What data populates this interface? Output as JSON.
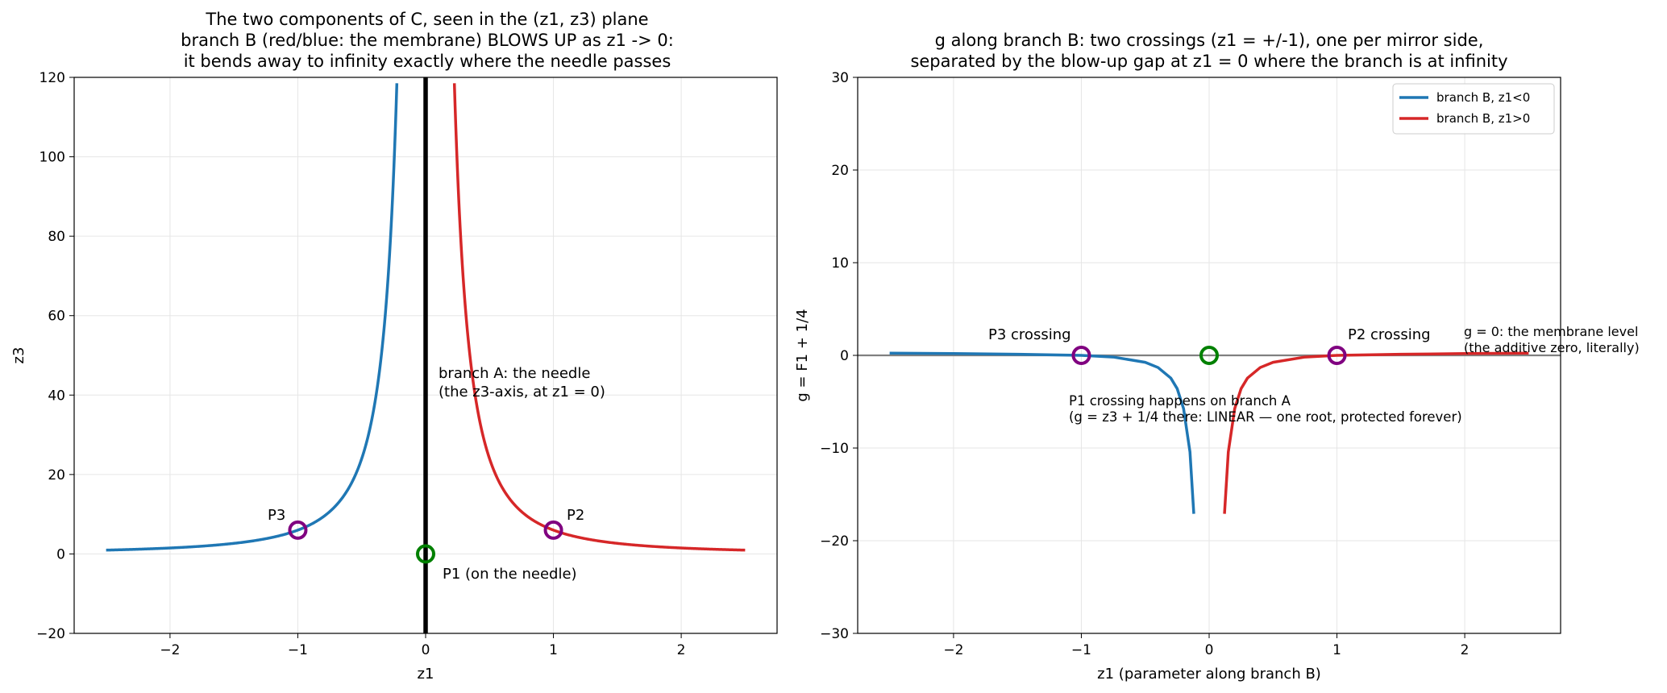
{
  "chart_data": [
    {
      "type": "line",
      "title": [
        "The two components of C, seen in the (z1, z3) plane",
        "branch B (red/blue: the membrane) BLOWS UP as z1 -> 0:",
        "it bends away to infinity exactly where the needle passes"
      ],
      "xlabel": "z1",
      "ylabel": "z3",
      "xlim": [
        -2.75,
        2.75
      ],
      "ylim": [
        -20,
        120
      ],
      "xticks": [
        -2,
        -1,
        0,
        1,
        2
      ],
      "yticks": [
        -20,
        0,
        20,
        40,
        60,
        80,
        100,
        120
      ],
      "grid": true,
      "series": [
        {
          "key": "neg",
          "color": "#1f77b4",
          "formula": "z3 = 6/z1^2",
          "x": [
            -2.5,
            -2.0,
            -1.5,
            -1.0,
            -0.75,
            -0.5,
            -0.4,
            -0.3,
            -0.25,
            -0.225
          ],
          "y": [
            0.96,
            1.5,
            2.67,
            6.0,
            10.67,
            24.0,
            37.5,
            66.7,
            96.0,
            118.5
          ]
        },
        {
          "key": "pos",
          "color": "#d62728",
          "formula": "z3 = 6/z1^2",
          "x": [
            0.225,
            0.25,
            0.3,
            0.4,
            0.5,
            0.75,
            1.0,
            1.5,
            2.0,
            2.5
          ],
          "y": [
            118.5,
            96.0,
            66.7,
            37.5,
            24.0,
            10.67,
            6.0,
            2.67,
            1.5,
            0.96
          ]
        },
        {
          "key": "needle",
          "color": "#000000",
          "x": [
            0,
            0
          ],
          "y": [
            -20,
            120
          ]
        }
      ],
      "markers": [
        {
          "label": "P3",
          "x": -1,
          "y": 6,
          "color": "#800080"
        },
        {
          "label": "P2",
          "x": 1,
          "y": 6,
          "color": "#800080"
        },
        {
          "label": "P1 (on the needle)",
          "x": 0,
          "y": 0,
          "color": "#008000"
        }
      ],
      "annotations": [
        {
          "lines": [
            "branch A: the needle",
            "(the z3-axis, at z1 = 0)"
          ],
          "x": 0.1,
          "y": 44,
          "color": "#000000"
        }
      ]
    },
    {
      "type": "line",
      "title": [
        "g along branch B: two crossings (z1 = +/-1), one per mirror side,",
        "separated by the blow-up gap at z1 = 0 where the branch is at infinity"
      ],
      "xlabel": "z1 (parameter along branch B)",
      "ylabel": "g = F1 + 1/4",
      "xlim": [
        -2.75,
        2.75
      ],
      "ylim": [
        -30,
        30
      ],
      "xticks": [
        -2,
        -1,
        0,
        1,
        2
      ],
      "yticks": [
        -30,
        -20,
        -10,
        0,
        10,
        20,
        30
      ],
      "grid": true,
      "legend_position": "top-right",
      "series": [
        {
          "name": "branch B, z1<0",
          "color": "#1f77b4",
          "x": [
            -2.5,
            -2.0,
            -1.5,
            -1.0,
            -0.75,
            -0.5,
            -0.4,
            -0.3,
            -0.25,
            -0.2,
            -0.15,
            -0.12
          ],
          "y": [
            0.24,
            0.19,
            0.12,
            0.0,
            -0.18,
            -0.75,
            -1.31,
            -2.45,
            -3.59,
            -5.75,
            -10.42,
            -17.1
          ]
        },
        {
          "name": "branch B, z1>0",
          "color": "#d62728",
          "x": [
            0.12,
            0.15,
            0.2,
            0.25,
            0.3,
            0.4,
            0.5,
            0.75,
            1.0,
            1.5,
            2.0,
            2.5
          ],
          "y": [
            -17.1,
            -10.42,
            -5.75,
            -3.59,
            -2.45,
            -1.31,
            -0.75,
            -0.18,
            0.0,
            0.12,
            0.19,
            0.24
          ]
        }
      ],
      "reference_line": {
        "y": 0,
        "color": "#808080",
        "label": [
          "g = 0: the membrane level",
          "(the additive zero, literally)"
        ]
      },
      "markers": [
        {
          "label": "P3 crossing",
          "x": -1,
          "y": 0,
          "color": "#800080"
        },
        {
          "label": "P2 crossing",
          "x": 1,
          "y": 0,
          "color": "#800080"
        },
        {
          "label": "",
          "x": 0,
          "y": 0,
          "color": "#008000"
        }
      ],
      "annotations": [
        {
          "lines": [
            "P1 crossing happens on branch A",
            "(g = z3 + 1/4 there: LINEAR — one root, protected forever)"
          ],
          "x": -1.1,
          "y": -5,
          "color": "#008000"
        }
      ]
    }
  ]
}
